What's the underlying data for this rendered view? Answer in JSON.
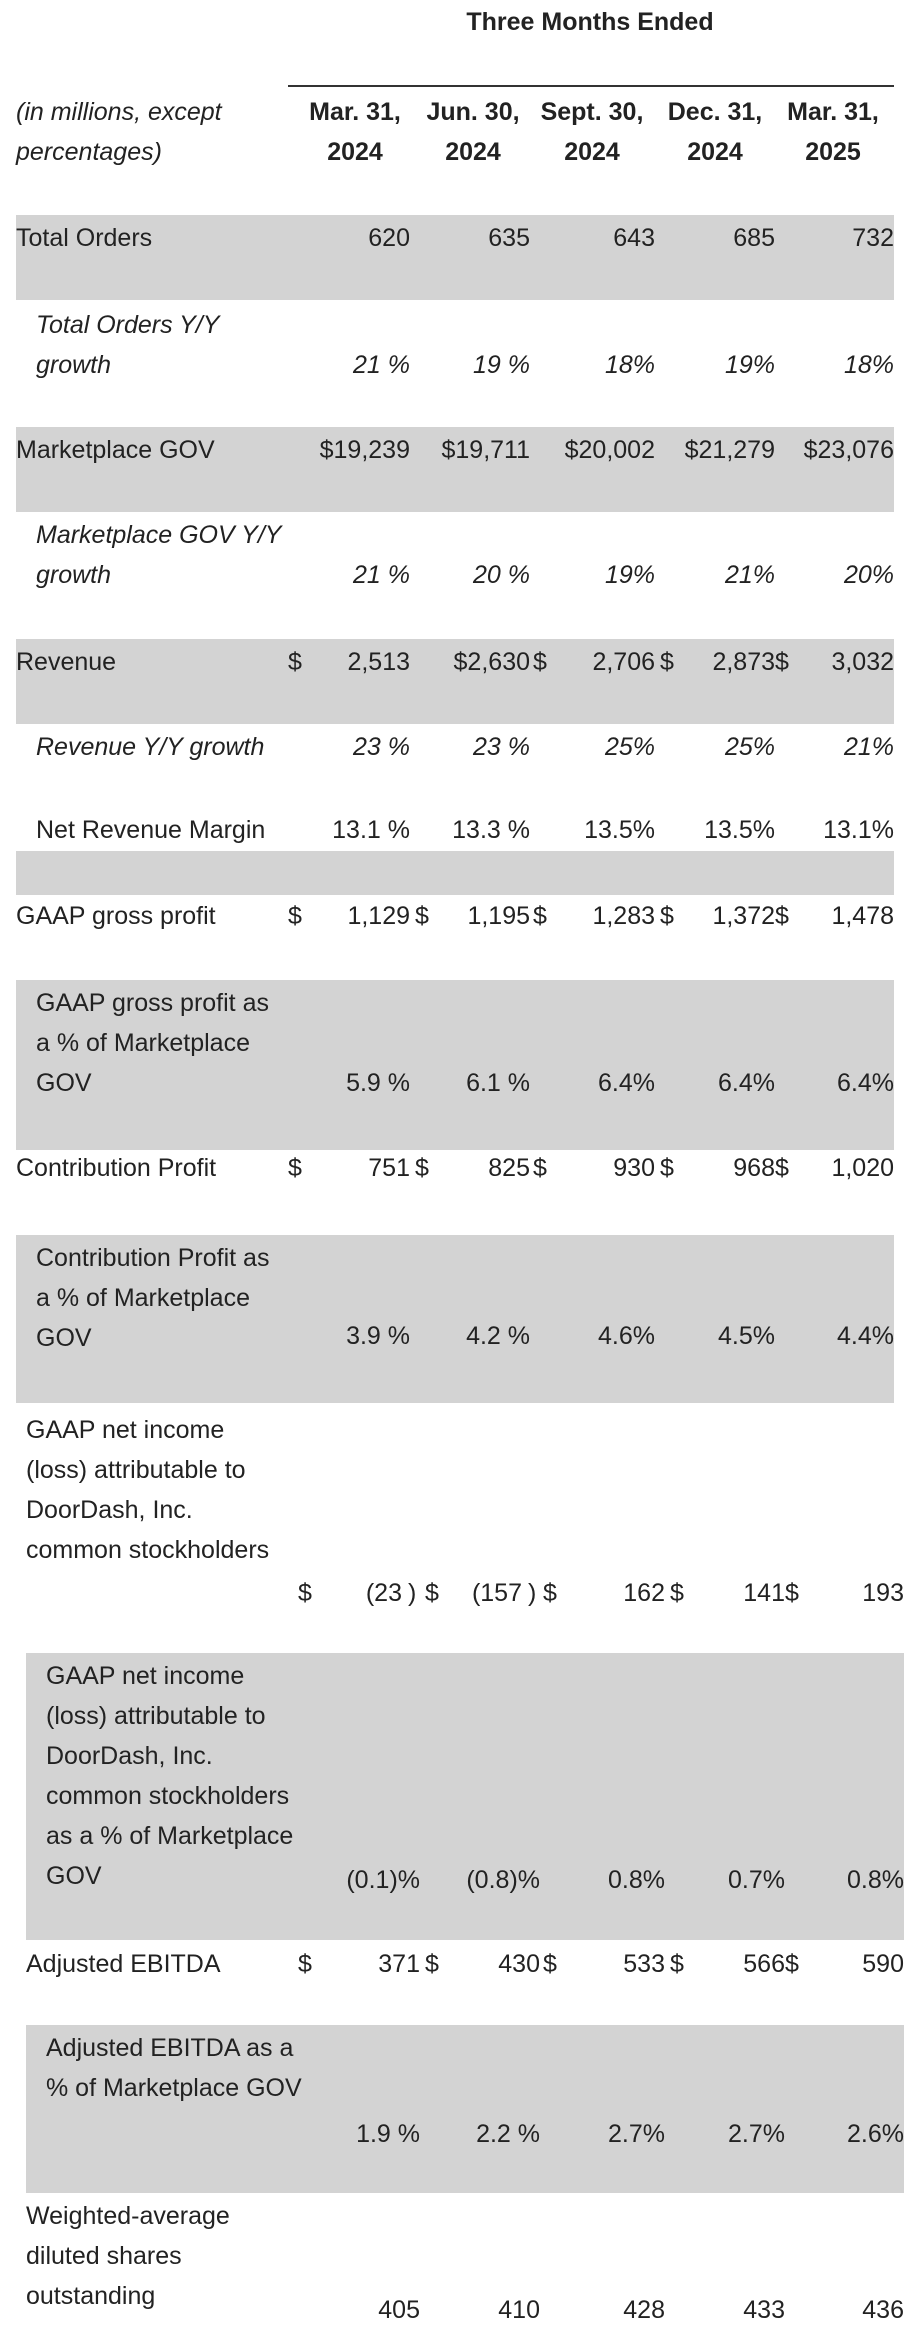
{
  "title": "Three Months Ended",
  "caption": "(in millions, except percentages)",
  "columns": [
    {
      "line1": "Mar. 31,",
      "line2": "2024"
    },
    {
      "line1": "Jun. 30,",
      "line2": "2024"
    },
    {
      "line1": "Sept. 30,",
      "line2": "2024"
    },
    {
      "line1": "Dec. 31,",
      "line2": "2024"
    },
    {
      "line1": "Mar. 31,",
      "line2": "2025"
    }
  ],
  "rows": [
    {
      "label": "Total Orders",
      "values": [
        "620",
        "635",
        "643",
        "685",
        "732"
      ]
    },
    {
      "label": "Total Orders Y/Y growth",
      "values": [
        "21 %",
        "19 %",
        "18%",
        "19%",
        "18%"
      ]
    },
    {
      "label": "Marketplace GOV",
      "values": [
        "$19,239",
        "$19,711",
        "$20,002",
        "$21,279",
        "$23,076"
      ]
    },
    {
      "label": "Marketplace GOV Y/Y growth",
      "values": [
        "21 %",
        "20 %",
        "19%",
        "21%",
        "20%"
      ]
    },
    {
      "label": "Revenue",
      "values": [
        "2,513",
        "$2,630",
        "2,706",
        "2,873",
        "3,032"
      ]
    },
    {
      "label": "Revenue Y/Y growth",
      "values": [
        "23 %",
        "23 %",
        "25%",
        "25%",
        "21%"
      ]
    },
    {
      "label": "Net Revenue Margin",
      "values": [
        "13.1 %",
        "13.3 %",
        "13.5%",
        "13.5%",
        "13.1%"
      ]
    },
    {
      "label": "GAAP gross profit",
      "values": [
        "1,129",
        "1,195",
        "1,283",
        "1,372",
        "1,478"
      ]
    },
    {
      "label": "GAAP gross profit as a % of Marketplace GOV",
      "values": [
        "5.9 %",
        "6.1 %",
        "6.4%",
        "6.4%",
        "6.4%"
      ]
    },
    {
      "label": "Contribution Profit",
      "values": [
        "751",
        "825",
        "930",
        "968",
        "1,020"
      ]
    },
    {
      "label": "Contribution Profit as a % of Marketplace GOV",
      "values": [
        "3.9 %",
        "4.2 %",
        "4.6%",
        "4.5%",
        "4.4%"
      ]
    },
    {
      "label": "GAAP net income (loss) attributable to DoorDash, Inc. common stockholders",
      "values": [
        "(23",
        "(157",
        "162",
        "141",
        "193"
      ]
    },
    {
      "label": "GAAP net income (loss) attributable to DoorDash, Inc. common stockholders as a % of Marketplace GOV",
      "values": [
        "(0.1)%",
        "(0.8)%",
        "0.8%",
        "0.7%",
        "0.8%"
      ]
    },
    {
      "label": "Adjusted EBITDA",
      "values": [
        "371",
        "430",
        "533",
        "566",
        "590"
      ]
    },
    {
      "label": "Adjusted EBITDA as a % of Marketplace GOV",
      "values": [
        "1.9 %",
        "2.2 %",
        "2.7%",
        "2.7%",
        "2.6%"
      ]
    },
    {
      "label": "Weighted-average diluted shares outstanding",
      "values": [
        "405",
        "410",
        "428",
        "433",
        "436"
      ]
    }
  ],
  "symbols": {
    "dollar": "$",
    "close_paren": ")"
  }
}
